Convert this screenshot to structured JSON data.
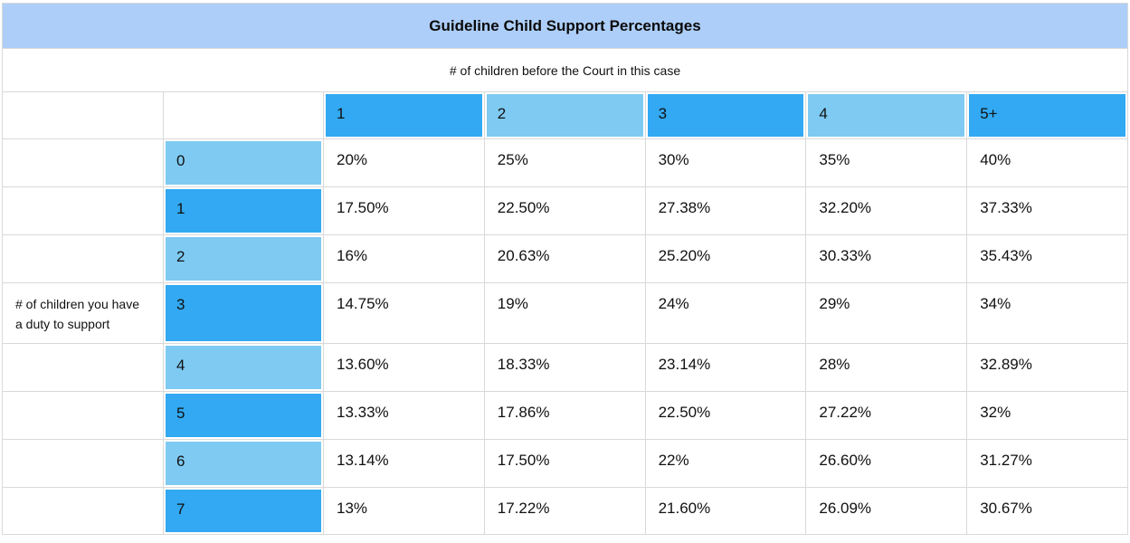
{
  "title": "Guideline Child Support Percentages",
  "subheader": "# of children before the Court in this case",
  "left_axis_label": {
    "line1": "# of children you have",
    "line2": "a duty to support"
  },
  "colors": {
    "title_bar": "#adcef8",
    "dark_blue": "#32a9f2",
    "light_blue": "#7ecaf2",
    "border": "#d9d9d9",
    "text": "#111111",
    "background": "#ffffff"
  },
  "chart_data": {
    "type": "table",
    "title": "Guideline Child Support Percentages",
    "column_axis_label": "# of children before the Court in this case",
    "row_axis_label": "# of children you have a duty to support",
    "columns": [
      "1",
      "2",
      "3",
      "4",
      "5+"
    ],
    "rows": [
      {
        "label": "0",
        "values": [
          "20%",
          "25%",
          "30%",
          "35%",
          "40%"
        ]
      },
      {
        "label": "1",
        "values": [
          "17.50%",
          "22.50%",
          "27.38%",
          "32.20%",
          "37.33%"
        ]
      },
      {
        "label": "2",
        "values": [
          "16%",
          "20.63%",
          "25.20%",
          "30.33%",
          "35.43%"
        ]
      },
      {
        "label": "3",
        "values": [
          "14.75%",
          "19%",
          "24%",
          "29%",
          "34%"
        ]
      },
      {
        "label": "4",
        "values": [
          "13.60%",
          "18.33%",
          "23.14%",
          "28%",
          "32.89%"
        ]
      },
      {
        "label": "5",
        "values": [
          "13.33%",
          "17.86%",
          "22.50%",
          "27.22%",
          "32%"
        ]
      },
      {
        "label": "6",
        "values": [
          "13.14%",
          "17.50%",
          "22%",
          "26.60%",
          "31.27%"
        ]
      },
      {
        "label": "7",
        "values": [
          "13%",
          "17.22%",
          "21.60%",
          "26.09%",
          "30.67%"
        ]
      }
    ]
  }
}
